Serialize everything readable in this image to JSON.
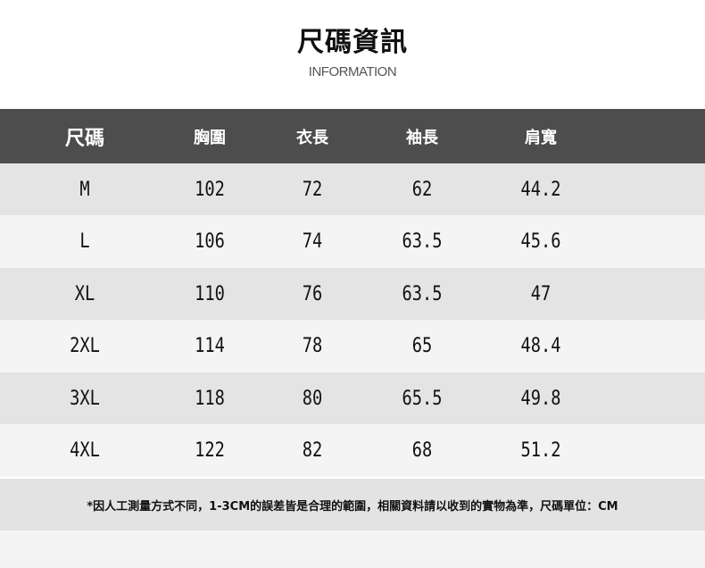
{
  "header": {
    "title": "尺碼資訊",
    "subtitle": "INFORMATION"
  },
  "table": {
    "columns": [
      "尺碼",
      "胸圍",
      "衣長",
      "袖長",
      "肩寬"
    ],
    "rows": [
      [
        "M",
        "102",
        "72",
        "62",
        "44.2"
      ],
      [
        "L",
        "106",
        "74",
        "63.5",
        "45.6"
      ],
      [
        "XL",
        "110",
        "76",
        "63.5",
        "47"
      ],
      [
        "2XL",
        "114",
        "78",
        "65",
        "48.4"
      ],
      [
        "3XL",
        "118",
        "80",
        "65.5",
        "49.8"
      ],
      [
        "4XL",
        "122",
        "82",
        "68",
        "51.2"
      ]
    ]
  },
  "note": "*因人工測量方式不同，1-3CM的誤差皆是合理的範圍，相關資料請以收到的實物為準，尺碼單位：CM",
  "colors": {
    "header_bg": "#4d4d4d",
    "row_dark": "#e4e4e4",
    "row_light": "#f4f4f4"
  }
}
